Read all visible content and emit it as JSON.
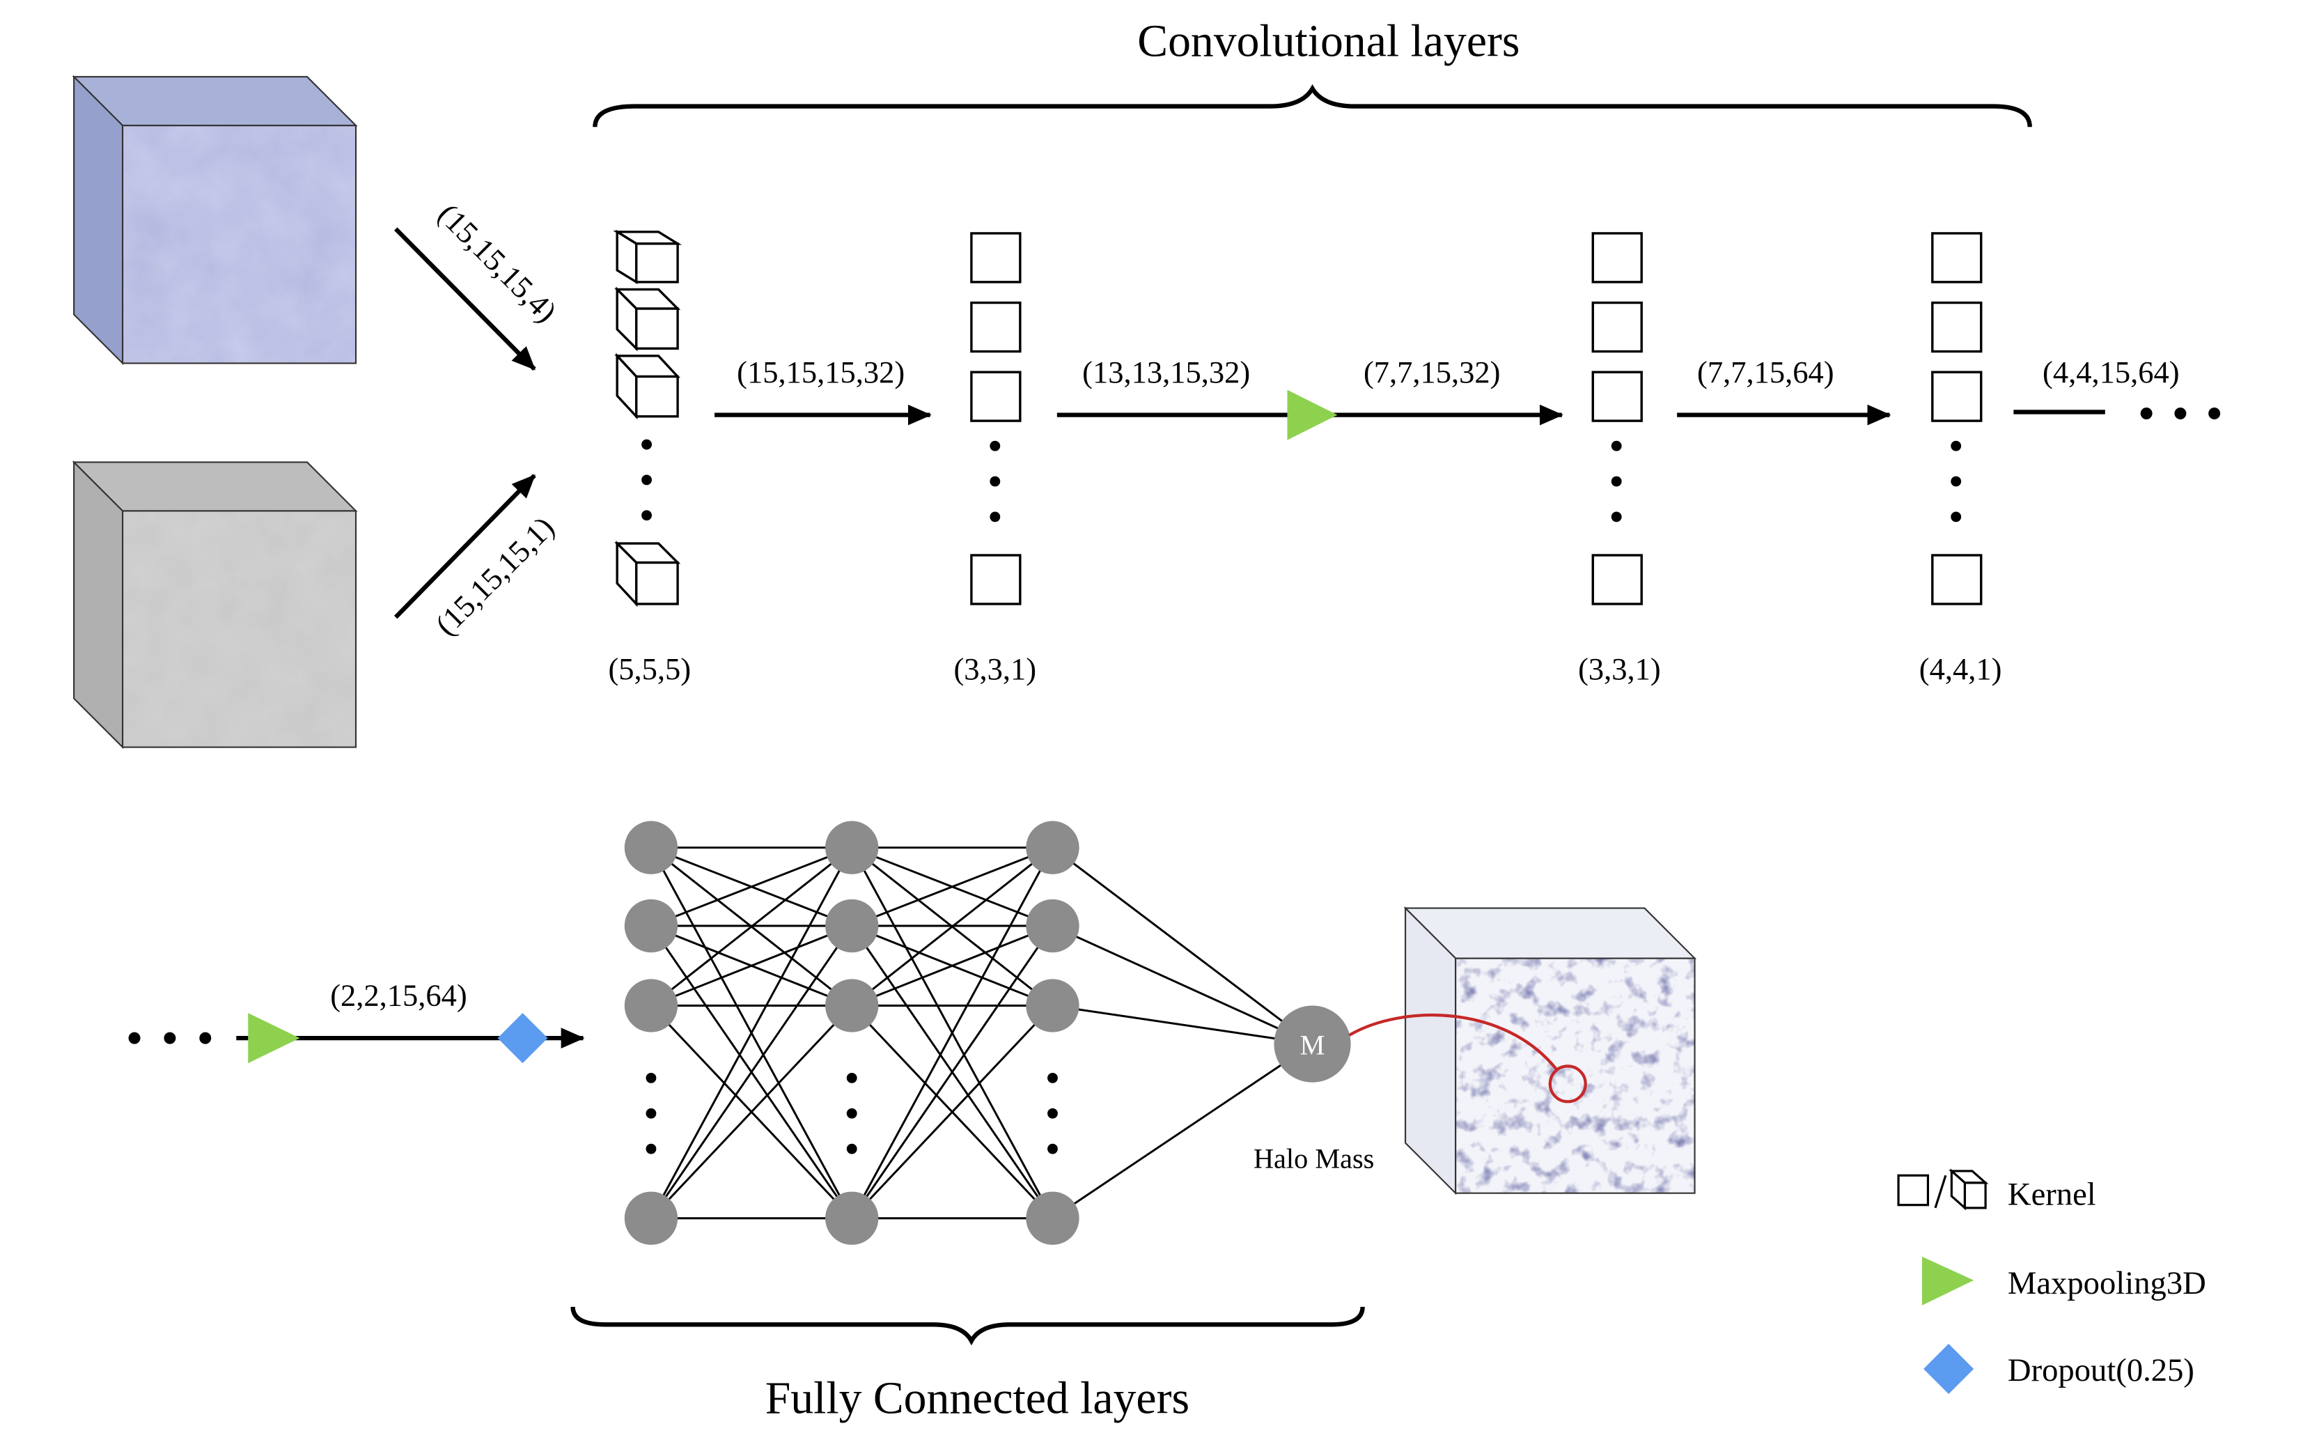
{
  "top": {
    "title": "Convolutional layers",
    "input_arrows": [
      "(15,15,15,4)",
      "(15,15,15,1)"
    ],
    "flow_labels": [
      "(15,15,15,32)",
      "(13,13,15,32)",
      "(7,7,15,32)",
      "(7,7,15,64)",
      "(4,4,15,64)"
    ],
    "kernel_labels": [
      "(5,5,5)",
      "(3,3,1)",
      "(3,3,1)",
      "(4,4,1)"
    ]
  },
  "bottom": {
    "flow_label": "(2,2,15,64)",
    "title": "Fully Connected layers",
    "output_node": "M",
    "output_label": "Halo Mass"
  },
  "legend": [
    {
      "label": "Kernel",
      "icon": "kernel-icon"
    },
    {
      "label": "Maxpooling3D",
      "icon": "green-triangle-icon"
    },
    {
      "label": "Dropout(0.25)",
      "icon": "blue-diamond-icon"
    }
  ],
  "colors": {
    "maxpool": "#8dd14f",
    "dropout": "#5b9bf0",
    "node": "#8c8c8c",
    "highlight": "#c62828",
    "halo": "#2b2d6b"
  }
}
